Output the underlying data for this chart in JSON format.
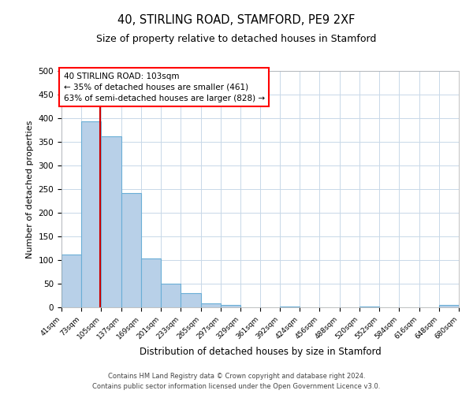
{
  "title": "40, STIRLING ROAD, STAMFORD, PE9 2XF",
  "subtitle": "Size of property relative to detached houses in Stamford",
  "xlabel": "Distribution of detached houses by size in Stamford",
  "ylabel": "Number of detached properties",
  "bin_edges": [
    41,
    73,
    105,
    137,
    169,
    201,
    233,
    265,
    297,
    329,
    361,
    392,
    424,
    456,
    488,
    520,
    552,
    584,
    616,
    648,
    680
  ],
  "bar_heights": [
    111,
    394,
    361,
    241,
    104,
    50,
    30,
    8,
    5,
    0,
    0,
    2,
    0,
    0,
    0,
    1,
    0,
    0,
    0,
    5
  ],
  "tick_labels": [
    "41sqm",
    "73sqm",
    "105sqm",
    "137sqm",
    "169sqm",
    "201sqm",
    "233sqm",
    "265sqm",
    "297sqm",
    "329sqm",
    "361sqm",
    "392sqm",
    "424sqm",
    "456sqm",
    "488sqm",
    "520sqm",
    "552sqm",
    "584sqm",
    "616sqm",
    "648sqm",
    "680sqm"
  ],
  "bar_color": "#b8d0e8",
  "bar_edge_color": "#6aaed6",
  "property_line_x": 103,
  "property_line_color": "#cc0000",
  "ylim": [
    0,
    500
  ],
  "annotation_line1": "40 STIRLING ROAD: 103sqm",
  "annotation_line2": "← 35% of detached houses are smaller (461)",
  "annotation_line3": "63% of semi-detached houses are larger (828) →",
  "footer_line1": "Contains HM Land Registry data © Crown copyright and database right 2024.",
  "footer_line2": "Contains public sector information licensed under the Open Government Licence v3.0.",
  "background_color": "#ffffff",
  "grid_color": "#c8d8e8"
}
